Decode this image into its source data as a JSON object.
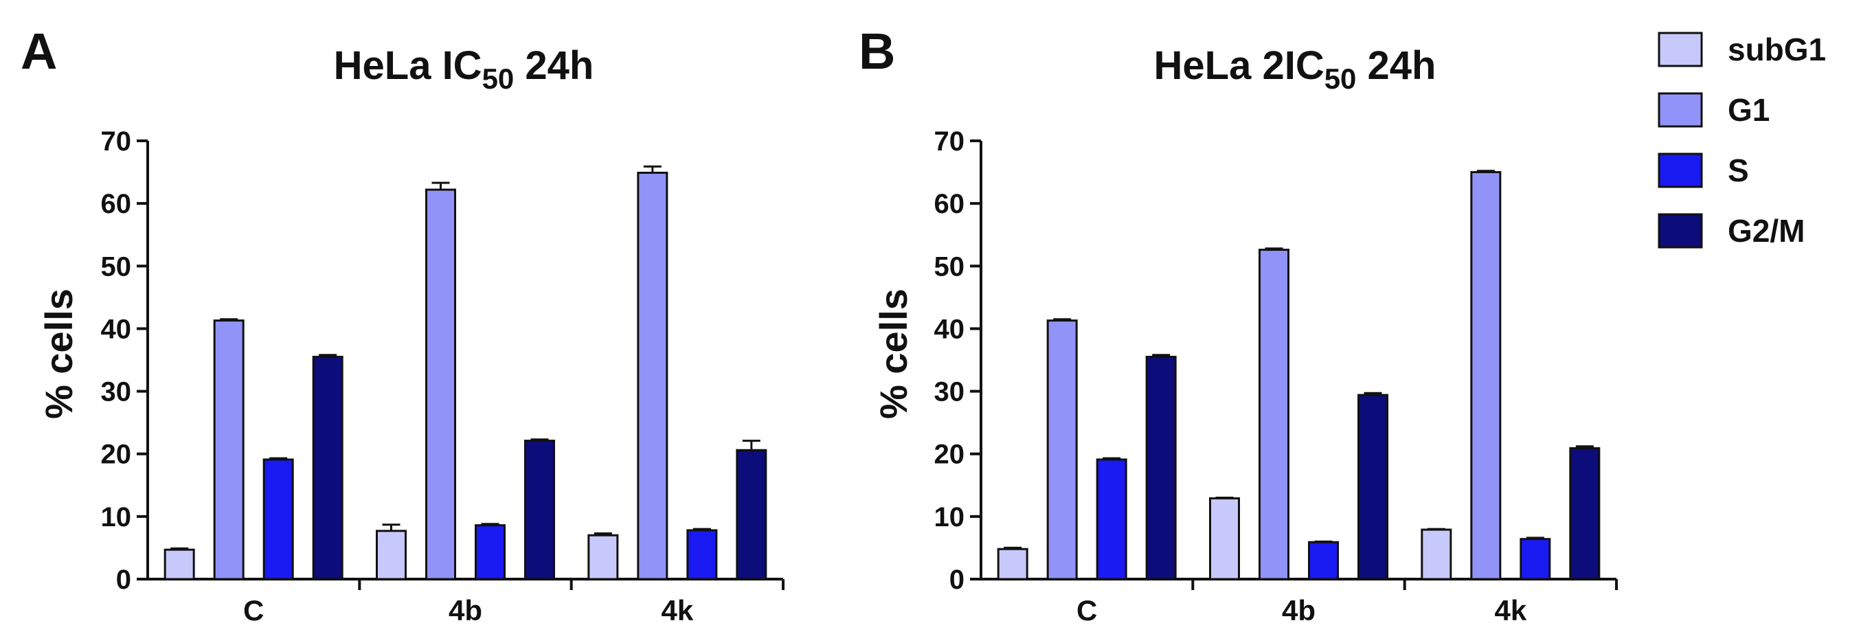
{
  "colors": {
    "subG1": "#c8c9fb",
    "G1": "#9293f8",
    "S": "#1a1af2",
    "G2/M": "#0c0c7a"
  },
  "legend": {
    "entries": [
      "subG1",
      "G1",
      "S",
      "G2/M"
    ]
  },
  "chart_data": [
    {
      "type": "bar",
      "panel": "A",
      "title": "HeLa IC50 24h",
      "title_parts": {
        "prefix": "HeLa IC",
        "subscript": "50",
        "suffix": " 24h"
      },
      "xlabel": "",
      "ylabel": "% cells",
      "ylim": [
        0,
        70
      ],
      "yticks": [
        0,
        10,
        20,
        30,
        40,
        50,
        60,
        70
      ],
      "categories": [
        "C",
        "4b",
        "4k"
      ],
      "series": [
        {
          "name": "subG1",
          "values": [
            4.7,
            7.7,
            7.0
          ],
          "errors": [
            0.2,
            1.0,
            0.3
          ]
        },
        {
          "name": "G1",
          "values": [
            41.3,
            62.2,
            64.9
          ],
          "errors": [
            0.2,
            1.1,
            1.0
          ]
        },
        {
          "name": "S",
          "values": [
            19.1,
            8.6,
            7.8
          ],
          "errors": [
            0.2,
            0.2,
            0.2
          ]
        },
        {
          "name": "G2/M",
          "values": [
            35.5,
            22.1,
            20.6
          ],
          "errors": [
            0.3,
            0.2,
            1.5
          ]
        }
      ]
    },
    {
      "type": "bar",
      "panel": "B",
      "title": "HeLa 2IC50 24h",
      "title_parts": {
        "prefix": "HeLa 2IC",
        "subscript": "50",
        "suffix": " 24h"
      },
      "xlabel": "",
      "ylabel": "% cells",
      "ylim": [
        0,
        70
      ],
      "yticks": [
        0,
        10,
        20,
        30,
        40,
        50,
        60,
        70
      ],
      "categories": [
        "C",
        "4b",
        "4k"
      ],
      "series": [
        {
          "name": "subG1",
          "values": [
            4.8,
            12.9,
            7.9
          ],
          "errors": [
            0.2,
            0.1,
            0.1
          ]
        },
        {
          "name": "G1",
          "values": [
            41.3,
            52.6,
            65.0
          ],
          "errors": [
            0.2,
            0.2,
            0.2
          ]
        },
        {
          "name": "S",
          "values": [
            19.1,
            5.9,
            6.4
          ],
          "errors": [
            0.2,
            0.1,
            0.2
          ]
        },
        {
          "name": "G2/M",
          "values": [
            35.5,
            29.4,
            20.9
          ],
          "errors": [
            0.3,
            0.3,
            0.3
          ]
        }
      ]
    }
  ]
}
